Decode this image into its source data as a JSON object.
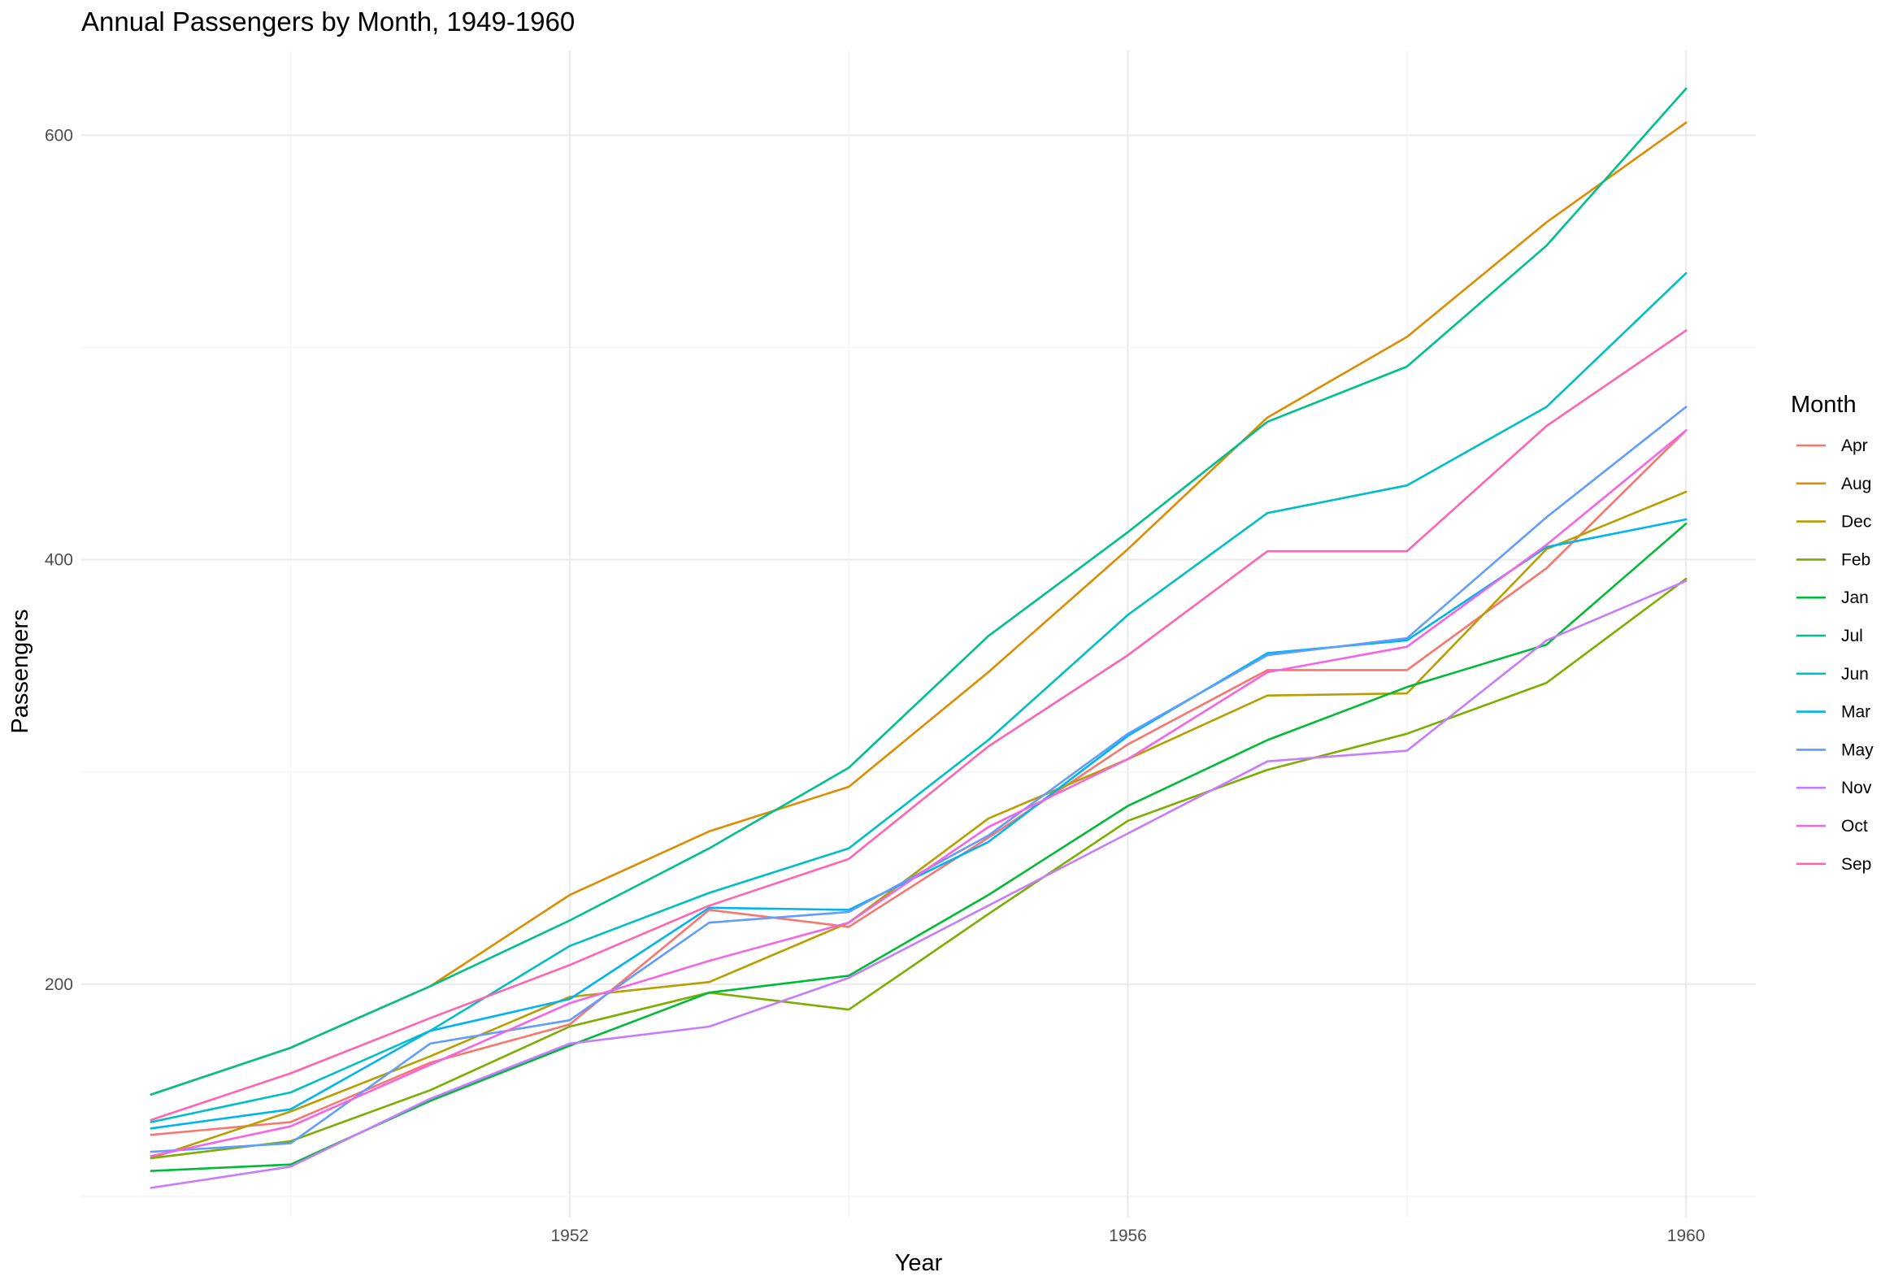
{
  "chart_data": {
    "type": "line",
    "title": "Annual Passengers by Month, 1949-1960",
    "xlabel": "Year",
    "ylabel": "Passengers",
    "x": [
      1949,
      1950,
      1951,
      1952,
      1953,
      1954,
      1955,
      1956,
      1957,
      1958,
      1959,
      1960
    ],
    "xlim": [
      1948.5,
      1960.5
    ],
    "ylim": [
      90,
      640
    ],
    "x_ticks": [
      1952,
      1956,
      1960
    ],
    "y_ticks": [
      200,
      400,
      600
    ],
    "grid": true,
    "legend": {
      "title": "Month",
      "position": "right"
    },
    "series": [
      {
        "name": "Apr",
        "color": "#F8766D",
        "values": [
          129,
          135,
          163,
          181,
          235,
          227,
          269,
          313,
          348,
          348,
          396,
          461
        ]
      },
      {
        "name": "Aug",
        "color": "#DE8C00",
        "values": [
          148,
          170,
          199,
          242,
          272,
          293,
          347,
          405,
          467,
          505,
          559,
          606
        ]
      },
      {
        "name": "Dec",
        "color": "#B79F00",
        "values": [
          118,
          140,
          166,
          194,
          201,
          229,
          278,
          306,
          336,
          337,
          405,
          432
        ]
      },
      {
        "name": "Feb",
        "color": "#7CAE00",
        "values": [
          118,
          126,
          150,
          180,
          196,
          188,
          233,
          277,
          301,
          318,
          342,
          391
        ]
      },
      {
        "name": "Jan",
        "color": "#00BA38",
        "values": [
          112,
          115,
          145,
          171,
          196,
          204,
          242,
          284,
          315,
          340,
          360,
          417
        ]
      },
      {
        "name": "Jul",
        "color": "#00C08B",
        "values": [
          148,
          170,
          199,
          230,
          264,
          302,
          364,
          413,
          465,
          491,
          548,
          622
        ]
      },
      {
        "name": "Jun",
        "color": "#00BFC4",
        "values": [
          135,
          149,
          178,
          218,
          243,
          264,
          315,
          374,
          422,
          435,
          472,
          535
        ]
      },
      {
        "name": "Mar",
        "color": "#00B4F0",
        "values": [
          132,
          141,
          178,
          193,
          236,
          235,
          267,
          317,
          356,
          362,
          406,
          419
        ]
      },
      {
        "name": "May",
        "color": "#619CFF",
        "values": [
          121,
          125,
          172,
          183,
          229,
          234,
          270,
          318,
          355,
          363,
          420,
          472
        ]
      },
      {
        "name": "Nov",
        "color": "#C77CFF",
        "values": [
          104,
          114,
          146,
          172,
          180,
          203,
          237,
          271,
          305,
          310,
          362,
          390
        ]
      },
      {
        "name": "Oct",
        "color": "#F564E3",
        "values": [
          119,
          133,
          162,
          191,
          211,
          229,
          274,
          306,
          347,
          359,
          407,
          461
        ]
      },
      {
        "name": "Sep",
        "color": "#FF64B0",
        "values": [
          136,
          158,
          184,
          209,
          237,
          259,
          312,
          355,
          404,
          404,
          463,
          508
        ]
      }
    ]
  }
}
